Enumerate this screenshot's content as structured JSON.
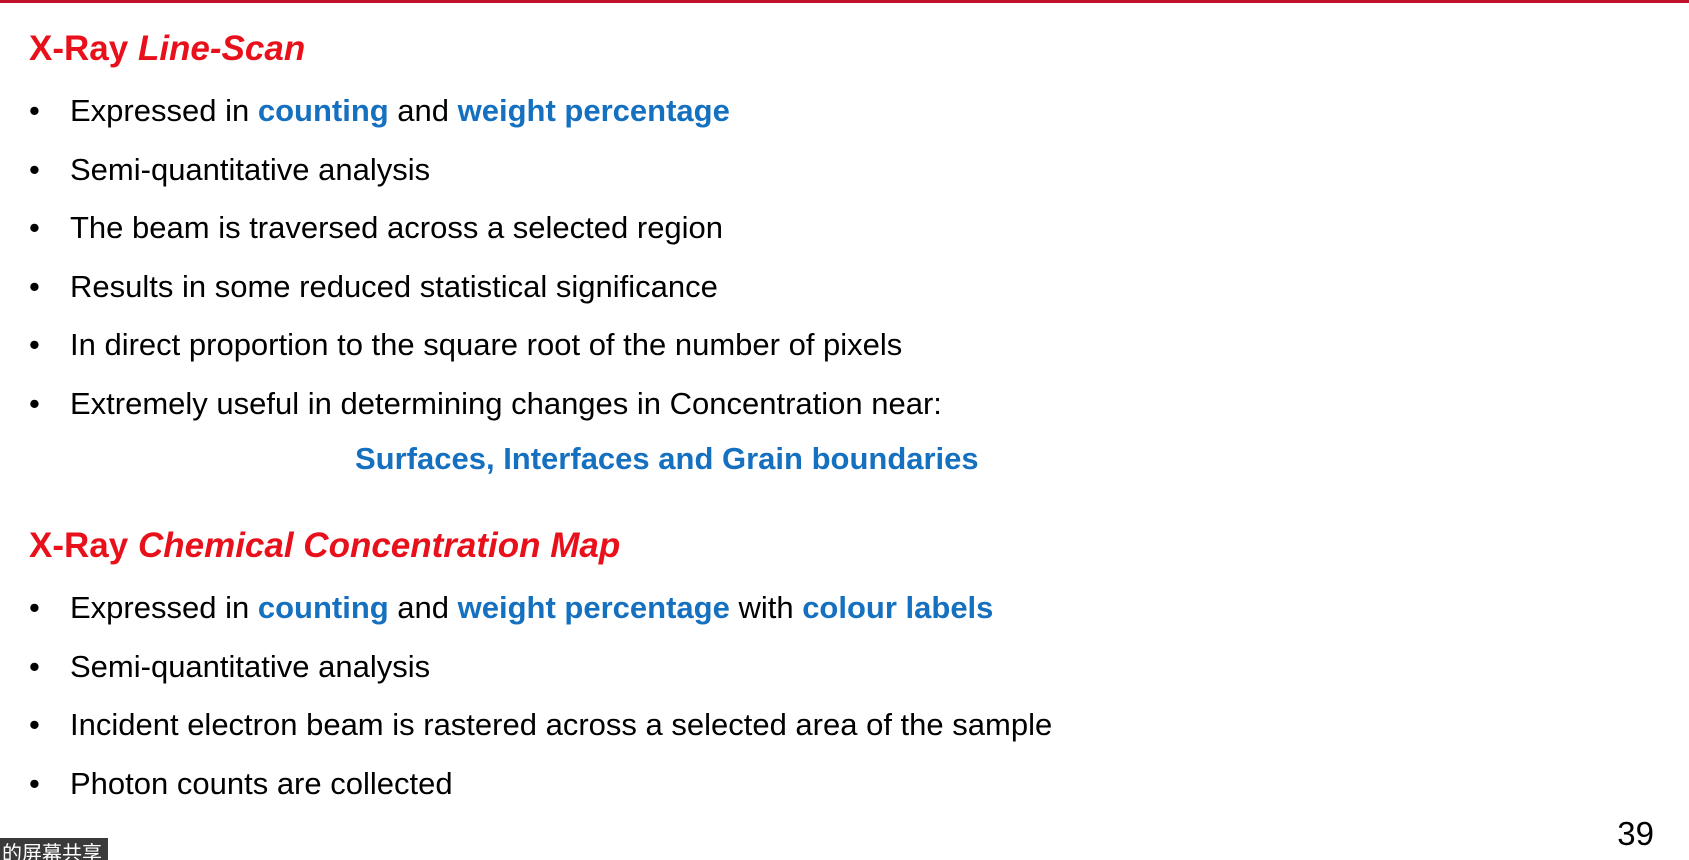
{
  "section1": {
    "title_prefix": "X-Ray",
    "title_italic": "Line-Scan",
    "bullets": [
      {
        "parts": [
          {
            "t": "Expressed in ",
            "hl": false
          },
          {
            "t": "counting",
            "hl": true
          },
          {
            "t": " and ",
            "hl": false
          },
          {
            "t": "weight percentage",
            "hl": true
          }
        ]
      },
      {
        "parts": [
          {
            "t": "Semi-quantitative analysis",
            "hl": false
          }
        ]
      },
      {
        "parts": [
          {
            "t": "The beam is traversed across a selected region",
            "hl": false
          }
        ]
      },
      {
        "parts": [
          {
            "t": "Results in some reduced statistical significance",
            "hl": false
          }
        ]
      },
      {
        "parts": [
          {
            "t": "In direct proportion to the square root of the number of pixels",
            "hl": false
          }
        ]
      },
      {
        "parts": [
          {
            "t": "Extremely useful in determining changes in Concentration near:",
            "hl": false
          }
        ]
      }
    ],
    "sub_line": "Surfaces, Interfaces and Grain boundaries"
  },
  "section2": {
    "title_prefix": "X-Ray",
    "title_italic": "Chemical Concentration Map",
    "bullets": [
      {
        "parts": [
          {
            "t": "Expressed in ",
            "hl": false
          },
          {
            "t": "counting",
            "hl": true
          },
          {
            "t": " and ",
            "hl": false
          },
          {
            "t": "weight percentage",
            "hl": true
          },
          {
            "t": " with ",
            "hl": false
          },
          {
            "t": "colour labels",
            "hl": true
          }
        ]
      },
      {
        "parts": [
          {
            "t": "Semi-quantitative analysis",
            "hl": false
          }
        ]
      },
      {
        "parts": [
          {
            "t": "Incident electron beam is rastered across a selected area of the sample",
            "hl": false
          }
        ]
      },
      {
        "parts": [
          {
            "t": "Photon counts are collected",
            "hl": false
          }
        ]
      }
    ]
  },
  "bullet_glyph": "•",
  "page_number": "39",
  "share_banner": "的屏幕共享",
  "colors": {
    "heading": "#e8101a",
    "highlight": "#1570c0",
    "top_rule": "#c0102a"
  }
}
